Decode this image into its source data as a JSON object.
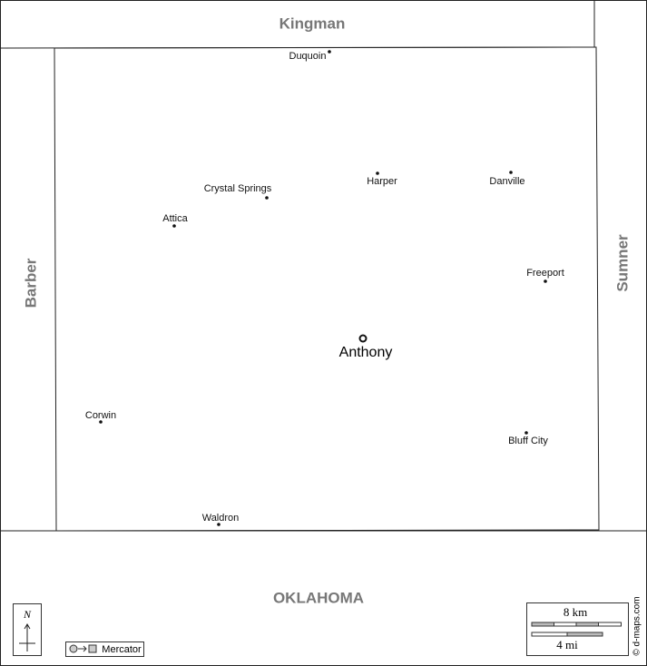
{
  "regions": {
    "north": "Kingman",
    "west": "Barber",
    "east": "Sumner",
    "south": "OKLAHOMA"
  },
  "county_seat": "Anthony",
  "towns": [
    "Duquoin",
    "Harper",
    "Danville",
    "Crystal Springs",
    "Attica",
    "Freeport",
    "Corwin",
    "Bluff City",
    "Waldron"
  ],
  "compass": "N",
  "projection": "Mercator",
  "scale": {
    "km": "8 km",
    "mi": "4 mi"
  },
  "credit": "© d-maps.com"
}
